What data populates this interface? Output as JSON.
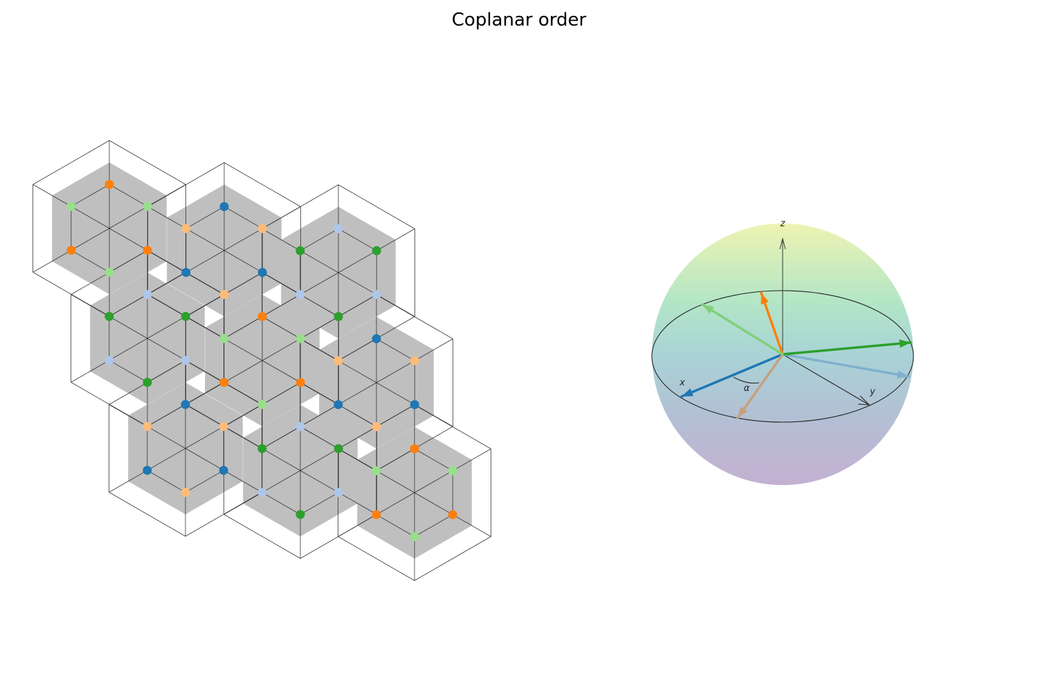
{
  "title": "Coplanar order",
  "palette": {
    "c1": "#1f77b4",
    "c2": "#aec7e8",
    "c3": "#ff7f0e",
    "c4": "#ffbb78",
    "c5": "#2ca02c",
    "c6": "#98df8a"
  },
  "lattice": {
    "hexagon_fill": "#bfbfbf",
    "edge_color": "#333333"
  },
  "sphere": {
    "axis_labels": {
      "x": "x",
      "y": "y",
      "z": "z"
    },
    "angle_label": "α",
    "gradient": [
      "#eef3b1",
      "#b3e6c6",
      "#a9d3d6",
      "#b3bfd4",
      "#c4b0d2"
    ],
    "spin_colors": [
      "#1f77b4",
      "#7fb0cd",
      "#ff7f0e",
      "#c6a07d",
      "#2ca02c",
      "#80cf7a"
    ]
  }
}
